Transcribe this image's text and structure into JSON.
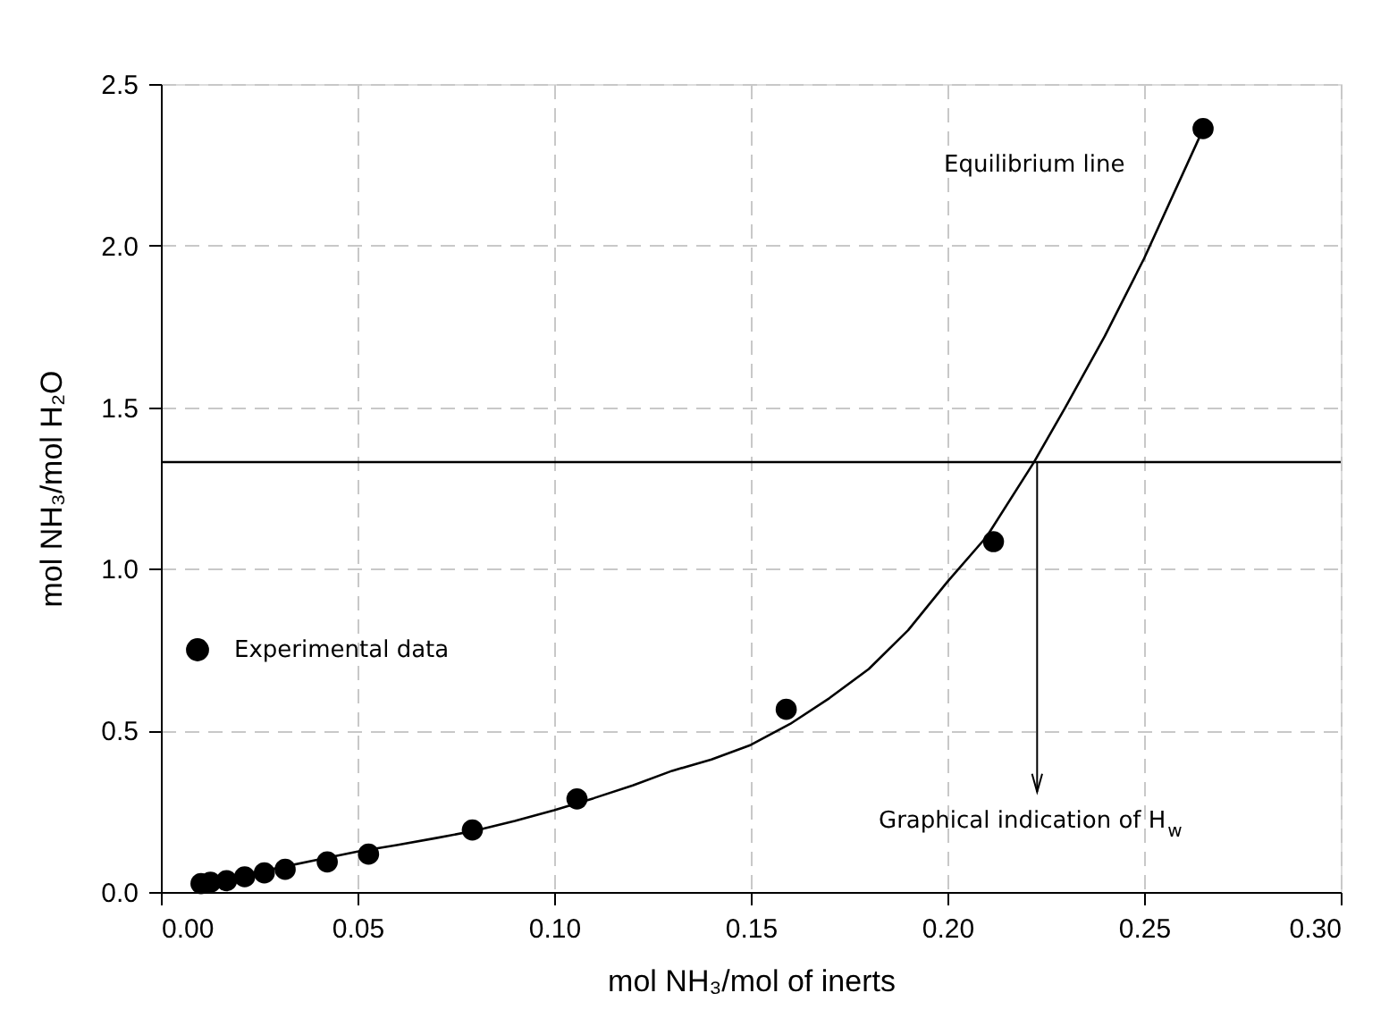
{
  "chart_data": {
    "type": "scatter",
    "xlabel": "mol NH₃/mol of inerts",
    "ylabel": "mol NH₃/mol H₂O",
    "xlim": [
      0,
      0.3
    ],
    "ylim": [
      0,
      2.5
    ],
    "xticks": [
      {
        "value": 0,
        "label": "0.00"
      },
      {
        "value": 0.05,
        "label": "0.05"
      },
      {
        "value": 0.1,
        "label": "0.10"
      },
      {
        "value": 0.15,
        "label": "0.15"
      },
      {
        "value": 0.2,
        "label": "0.20"
      },
      {
        "value": 0.25,
        "label": "0.25"
      },
      {
        "value": 0.3,
        "label": "0.30"
      }
    ],
    "yticks": [
      {
        "value": 0,
        "label": "0.0"
      },
      {
        "value": 0.5,
        "label": "0.5"
      },
      {
        "value": 1,
        "label": "1.0"
      },
      {
        "value": 1.5,
        "label": "1.5"
      },
      {
        "value": 2,
        "label": "2.0"
      },
      {
        "value": 2.5,
        "label": "2.5"
      }
    ],
    "grid": true,
    "legend": "left",
    "series": [
      {
        "name": "Experimental data",
        "marker": "circle",
        "color": "#000000",
        "x": [
          0.0102,
          0.0126,
          0.0167,
          0.0213,
          0.0263,
          0.0316,
          0.0423,
          0.0528,
          0.0792,
          0.1058,
          0.159,
          0.2117,
          0.265
        ],
        "values": [
          0.026,
          0.03,
          0.035,
          0.047,
          0.059,
          0.07,
          0.093,
          0.117,
          0.192,
          0.288,
          0.565,
          1.084,
          2.362
        ]
      },
      {
        "type": "line",
        "color": "#000000",
        "line_style": "solid",
        "x": [
          0.01,
          0.02,
          0.03,
          0.04,
          0.05,
          0.06,
          0.07,
          0.08,
          0.09,
          0.1,
          0.11,
          0.12,
          0.13,
          0.14,
          0.15,
          0.16,
          0.17,
          0.18,
          0.19,
          0.2,
          0.21,
          0.222,
          0.23,
          0.24,
          0.25,
          0.265
        ],
        "values": [
          0.026,
          0.05,
          0.075,
          0.1,
          0.125,
          0.145,
          0.167,
          0.19,
          0.22,
          0.253,
          0.29,
          0.33,
          0.375,
          0.41,
          0.455,
          0.52,
          0.6,
          0.69,
          0.81,
          0.96,
          1.1,
          1.33,
          1.5,
          1.72,
          1.96,
          2.36
        ]
      }
    ],
    "ref_lines": [
      {
        "axis": "y",
        "value": 1.33,
        "color": "#000000"
      }
    ],
    "annotations": [
      "Equilibrium line",
      {
        "text": "Graphical indication of H$_{w}$",
        "x": 0.2228,
        "y": 1.33
      }
    ]
  }
}
